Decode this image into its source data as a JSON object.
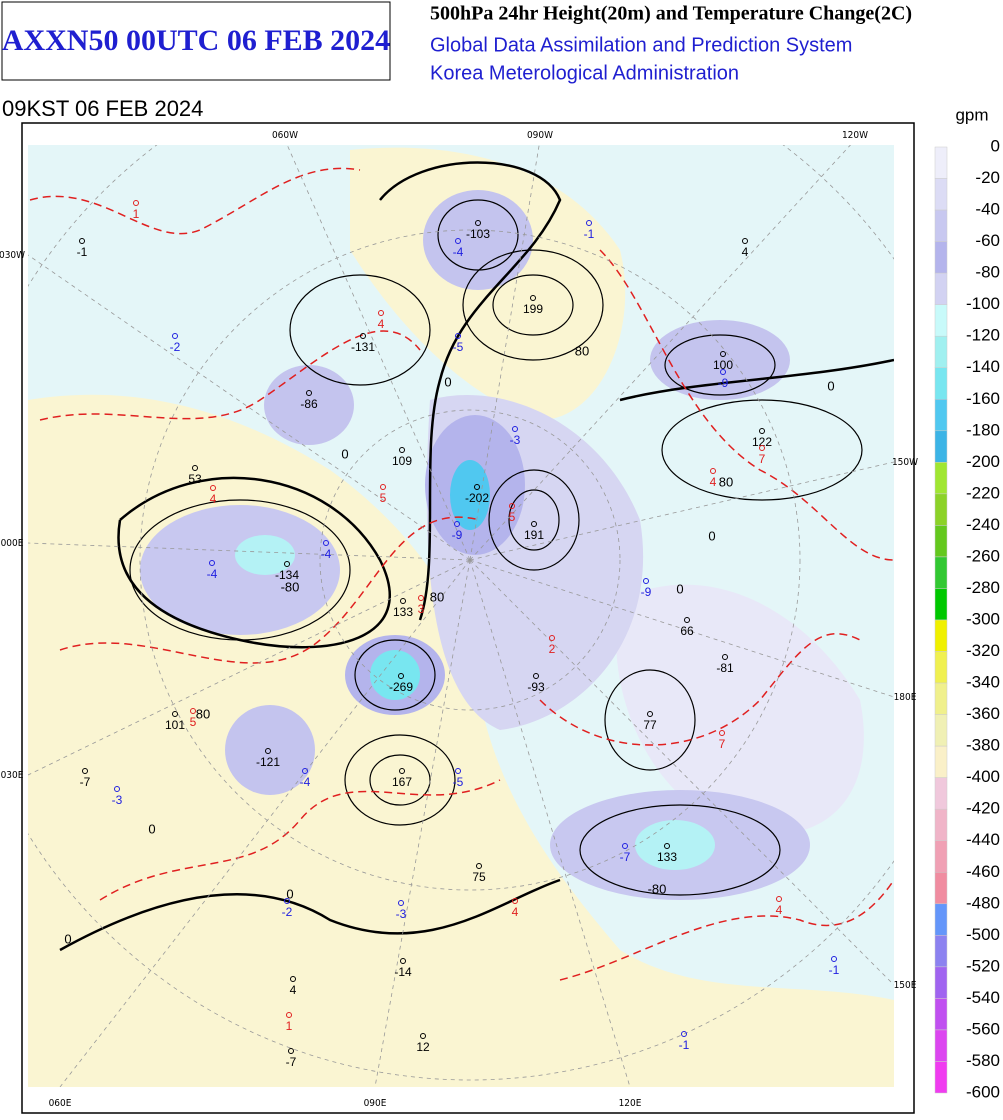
{
  "header": {
    "code": "AXXN50 00UTC 06 FEB 2024",
    "title": "500hPa 24hr Height(20m) and Temperature Change(2C)",
    "system": "Global Data Assimilation and Prediction System",
    "agency": "Korea Meterological Administration",
    "valid": "09KST 06 FEB 2024"
  },
  "legend": {
    "unit": "gpm",
    "levels": [
      0,
      -20,
      -40,
      -60,
      -80,
      -100,
      -120,
      -140,
      -160,
      -180,
      -200,
      -220,
      -240,
      -260,
      -280,
      -300,
      -320,
      -340,
      -360,
      -380,
      -400,
      -420,
      -440,
      -460,
      -480,
      -500,
      -520,
      -540,
      -560,
      -580,
      -600
    ],
    "colors": [
      "#eeeefa",
      "#dcdcf5",
      "#c8c8f0",
      "#b4b4ec",
      "#d2d2f2",
      "#c8fafa",
      "#a0f0f0",
      "#78e6f0",
      "#50c8f0",
      "#3cb4e6",
      "#a0e632",
      "#8cd228",
      "#64c81e",
      "#32c832",
      "#00c800",
      "#f0f000",
      "#f0f050",
      "#f0f08c",
      "#f0f0b4",
      "#faf0c8",
      "#f0c8dc",
      "#f0b4c8",
      "#f0a0b4",
      "#f08ca0",
      "#6496fa",
      "#8c82f0",
      "#a064f0",
      "#c050f0",
      "#dc46f0",
      "#f03cf0"
    ]
  },
  "map": {
    "grid_labels": [
      "060W",
      "090W",
      "120W",
      "030W",
      "150W",
      "000E",
      "180E",
      "030E",
      "150E",
      "060E",
      "090E",
      "120E"
    ],
    "centers": [
      {
        "value": -103,
        "kind": "height"
      },
      {
        "value": 199,
        "kind": "height"
      },
      {
        "value": -131,
        "kind": "height"
      },
      {
        "value": 100,
        "kind": "height"
      },
      {
        "value": -86,
        "kind": "height"
      },
      {
        "value": 109,
        "kind": "height"
      },
      {
        "value": 122,
        "kind": "height"
      },
      {
        "value": 53,
        "kind": "height"
      },
      {
        "value": -202,
        "kind": "height"
      },
      {
        "value": 191,
        "kind": "height"
      },
      {
        "value": -134,
        "kind": "height"
      },
      {
        "value": 133,
        "kind": "height"
      },
      {
        "value": 66,
        "kind": "height"
      },
      {
        "value": -81,
        "kind": "height"
      },
      {
        "value": -93,
        "kind": "height"
      },
      {
        "value": -269,
        "kind": "height"
      },
      {
        "value": 101,
        "kind": "height"
      },
      {
        "value": 77,
        "kind": "height"
      },
      {
        "value": -121,
        "kind": "height"
      },
      {
        "value": 167,
        "kind": "height"
      },
      {
        "value": -7,
        "kind": "height"
      },
      {
        "value": 133,
        "kind": "height"
      },
      {
        "value": 75,
        "kind": "height"
      },
      {
        "value": -14,
        "kind": "height"
      },
      {
        "value": 4,
        "kind": "height"
      },
      {
        "value": 12,
        "kind": "height"
      },
      {
        "value": -7,
        "kind": "height"
      },
      {
        "value": 4,
        "kind": "height"
      },
      {
        "value": -1,
        "kind": "height"
      },
      {
        "value": 1,
        "kind": "warm"
      },
      {
        "value": 4,
        "kind": "warm"
      },
      {
        "value": 4,
        "kind": "warm"
      },
      {
        "value": 5,
        "kind": "warm"
      },
      {
        "value": 5,
        "kind": "warm"
      },
      {
        "value": 4,
        "kind": "warm"
      },
      {
        "value": 7,
        "kind": "warm"
      },
      {
        "value": 3,
        "kind": "warm"
      },
      {
        "value": 2,
        "kind": "warm"
      },
      {
        "value": 5,
        "kind": "warm"
      },
      {
        "value": 7,
        "kind": "warm"
      },
      {
        "value": 4,
        "kind": "warm"
      },
      {
        "value": 4,
        "kind": "warm"
      },
      {
        "value": 1,
        "kind": "warm"
      },
      {
        "value": -1,
        "kind": "cold"
      },
      {
        "value": -4,
        "kind": "cold"
      },
      {
        "value": -2,
        "kind": "cold"
      },
      {
        "value": -5,
        "kind": "cold"
      },
      {
        "value": -9,
        "kind": "cold"
      },
      {
        "value": -3,
        "kind": "cold"
      },
      {
        "value": -9,
        "kind": "cold"
      },
      {
        "value": -4,
        "kind": "cold"
      },
      {
        "value": -4,
        "kind": "cold"
      },
      {
        "value": -9,
        "kind": "cold"
      },
      {
        "value": -4,
        "kind": "cold"
      },
      {
        "value": -5,
        "kind": "cold"
      },
      {
        "value": -3,
        "kind": "cold"
      },
      {
        "value": -7,
        "kind": "cold"
      },
      {
        "value": -2,
        "kind": "cold"
      },
      {
        "value": -3,
        "kind": "cold"
      },
      {
        "value": -1,
        "kind": "cold"
      },
      {
        "value": -1,
        "kind": "cold"
      }
    ],
    "contour_labels": [
      0,
      80,
      0,
      80,
      0,
      80,
      0,
      -80,
      0,
      0,
      80,
      -80,
      0,
      0
    ]
  }
}
